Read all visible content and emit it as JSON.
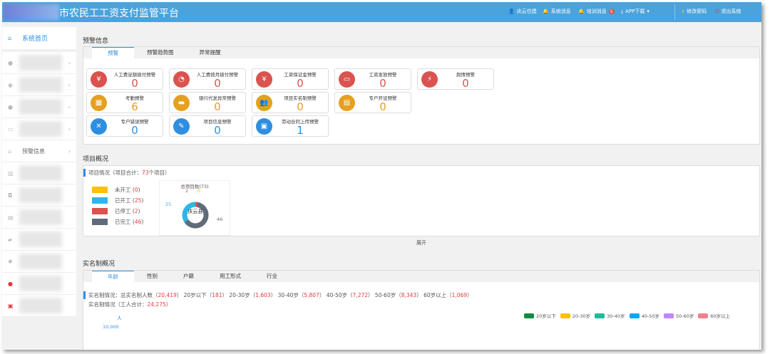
{
  "header": {
    "title": "市农民工工资支付监管平台",
    "user": "庆云住建",
    "sys_msg": "系统消息",
    "train_msg": "培训消息",
    "train_count": "5",
    "app": "APP下载",
    "change_pwd": "修改密码",
    "logout": "退出系统"
  },
  "sidebar": {
    "items": [
      {
        "label": "系统首页",
        "icon": "home-icon"
      },
      {
        "label": "",
        "icon": "badge-icon"
      },
      {
        "label": "",
        "icon": "money-icon"
      },
      {
        "label": "",
        "icon": "user-icon"
      },
      {
        "label": "",
        "icon": "card-icon"
      },
      {
        "label": "预警信息",
        "icon": "bank-icon"
      },
      {
        "label": "",
        "icon": "chart-icon"
      },
      {
        "label": "",
        "icon": "camera-icon"
      },
      {
        "label": "",
        "icon": "file-icon"
      },
      {
        "label": "",
        "icon": "book-icon"
      },
      {
        "label": "",
        "icon": "gear-icon"
      },
      {
        "label": "",
        "icon": "person-red-icon"
      },
      {
        "label": "",
        "icon": "lock-red-icon"
      }
    ]
  },
  "warning": {
    "title": "预警信息",
    "tabs": [
      "预警",
      "预警趋势图",
      "异常提醒"
    ],
    "cards": [
      {
        "name": "人工费足额拨付预警",
        "value": "0",
        "color": "#d9534f",
        "icon": "money-bag-icon"
      },
      {
        "name": "人工费按月拨付预警",
        "value": "0",
        "color": "#d9534f",
        "icon": "coin-icon"
      },
      {
        "name": "工资保证金预警",
        "value": "0",
        "color": "#d9534f",
        "icon": "shield-yen-icon"
      },
      {
        "name": "工资发放预警",
        "value": "0",
        "color": "#d9534f",
        "icon": "ticket-icon"
      },
      {
        "name": "舆情预警",
        "value": "0",
        "color": "#d9534f",
        "icon": "alarm-icon"
      },
      {
        "name": "考勤预警",
        "value": "6",
        "color": "#e6a020",
        "icon": "calendar-icon"
      },
      {
        "name": "银行代发异常预警",
        "value": "0",
        "color": "#e6a020",
        "icon": "bank-card-icon"
      },
      {
        "name": "项目实名制预警",
        "value": "0",
        "color": "#e6a020",
        "icon": "users-icon"
      },
      {
        "name": "专户开设预警",
        "value": "0",
        "color": "#e6a020",
        "icon": "id-card-icon"
      },
      {
        "name": "专户错误预警",
        "value": "0",
        "color": "#2e8ee0",
        "icon": "close-circle-icon"
      },
      {
        "name": "项目信息预警",
        "value": "0",
        "color": "#2e8ee0",
        "icon": "edit-icon"
      },
      {
        "name": "劳动合同上传预警",
        "value": "1",
        "color": "#2e8ee0",
        "icon": "contract-icon"
      }
    ]
  },
  "project": {
    "title": "项目概况",
    "sub_prefix": "项目情况（项目合计：",
    "total": "73",
    "sub_suffix": "个项目）",
    "expand": "展开",
    "legend": [
      {
        "label": "未开工",
        "value": 0,
        "color": "#ffc000"
      },
      {
        "label": "已开工",
        "value": 25,
        "color": "#2db7e8"
      },
      {
        "label": "已停工",
        "value": 2,
        "color": "#d9534f"
      },
      {
        "label": "已完工",
        "value": 46,
        "color": "#5f6b7a"
      }
    ],
    "donut_title": "总项目数(73)",
    "donut_center": "庆云县"
  },
  "realname": {
    "title": "实名制概况",
    "tabs": [
      "年龄",
      "性别",
      "户籍",
      "用工形式",
      "行业"
    ],
    "line1_prefix": "实名制情况：总实名制人数（",
    "total": "20,419",
    "groups": [
      {
        "label": "20岁以下",
        "value": "181",
        "color": "#108a3e"
      },
      {
        "label": "20-30岁",
        "value": "1,603",
        "color": "#ffc000"
      },
      {
        "label": "30-40岁",
        "value": "5,807",
        "color": "#1abc9c"
      },
      {
        "label": "40-50岁",
        "value": "7,272",
        "color": "#03a9f4"
      },
      {
        "label": "50-60岁",
        "value": "8,343",
        "color": "#c084fc"
      },
      {
        "label": "60岁以上",
        "value": "1,069",
        "color": "#f08090"
      }
    ],
    "line2_prefix": "实名制情况（工人合计：",
    "workers": "24,275",
    "y_unit": "人",
    "y_tick": "10,000"
  }
}
